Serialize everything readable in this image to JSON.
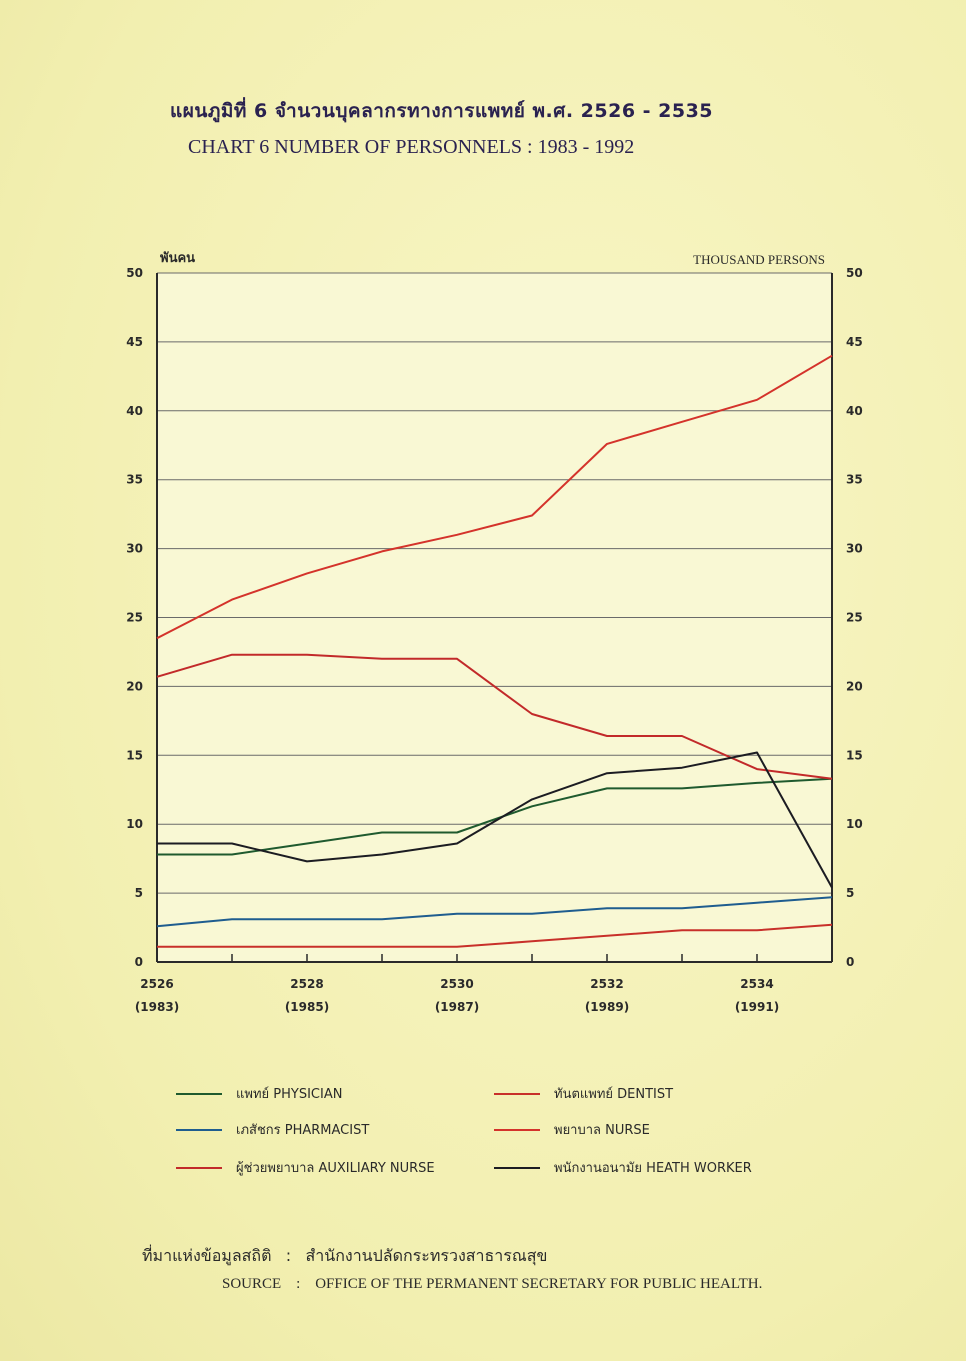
{
  "title": {
    "thai": "แผนภูมิที่ 6 จำนวนบุคลากรทางการแพทย์ พ.ศ. 2526 - 2535",
    "english": "CHART 6 NUMBER OF PERSONNELS : 1983 - 1992"
  },
  "units": {
    "left": "พันคน",
    "right": "THOUSAND PERSONS"
  },
  "source": {
    "thai_label": "ที่มาแห่งข้อมูลสถิติ",
    "thai_value": "สำนักงานปลัดกระทรวงสาธารณสุข",
    "english_label": "SOURCE",
    "english_value": "OFFICE OF THE PERMANENT SECRETARY FOR PUBLIC HEALTH.",
    "separator": ":"
  },
  "chart_data": {
    "type": "line",
    "x": [
      2526,
      2527,
      2528,
      2529,
      2530,
      2531,
      2532,
      2533,
      2534,
      2535
    ],
    "x_tick_labels": [
      {
        "year": 2526,
        "be": "2526",
        "ce": "(1983)"
      },
      {
        "year": 2528,
        "be": "2528",
        "ce": "(1985)"
      },
      {
        "year": 2530,
        "be": "2530",
        "ce": "(1987)"
      },
      {
        "year": 2532,
        "be": "2532",
        "ce": "(1989)"
      },
      {
        "year": 2534,
        "be": "2534",
        "ce": "(1991)"
      }
    ],
    "y_ticks": [
      0,
      5,
      10,
      15,
      20,
      25,
      30,
      35,
      40,
      45,
      50
    ],
    "ylim": [
      0,
      50
    ],
    "xlim": [
      2526,
      2535
    ],
    "grid": true,
    "series": [
      {
        "name": "แพทย์ PHYSICIAN",
        "color": "#1f5a2e",
        "values": [
          7.8,
          7.8,
          8.6,
          9.4,
          9.4,
          11.3,
          12.6,
          12.6,
          13.0,
          13.3
        ]
      },
      {
        "name": "ทันตแพทย์ DENTIST",
        "color": "#c8302a",
        "values": [
          1.1,
          1.1,
          1.1,
          1.1,
          1.1,
          1.5,
          1.9,
          2.3,
          2.3,
          2.7
        ]
      },
      {
        "name": "เภสัชกร PHARMACIST",
        "color": "#1f5d8f",
        "values": [
          2.6,
          3.1,
          3.1,
          3.1,
          3.5,
          3.5,
          3.9,
          3.9,
          4.3,
          4.7
        ]
      },
      {
        "name": "พยาบาล NURSE",
        "color": "#d4332b",
        "values": [
          23.5,
          26.3,
          28.2,
          29.8,
          31.0,
          32.4,
          37.6,
          39.2,
          40.8,
          44.0
        ]
      },
      {
        "name": "ผู้ช่วยพยาบาล AUXILIARY NURSE",
        "color": "#c22a2a",
        "values": [
          20.7,
          22.3,
          22.3,
          22.0,
          22.0,
          18.0,
          16.4,
          16.4,
          14.0,
          13.3
        ]
      },
      {
        "name": "พนักงานอนามัย HEATH WORKER",
        "color": "#1c1c22",
        "values": [
          8.6,
          8.6,
          7.3,
          7.8,
          8.6,
          11.8,
          13.7,
          14.1,
          15.2,
          5.4
        ]
      }
    ]
  },
  "legend_layout": [
    {
      "series_index": 0
    },
    {
      "series_index": 1
    },
    {
      "series_index": 2
    },
    {
      "series_index": 3
    },
    {
      "series_index": 4
    },
    {
      "series_index": 5
    }
  ]
}
